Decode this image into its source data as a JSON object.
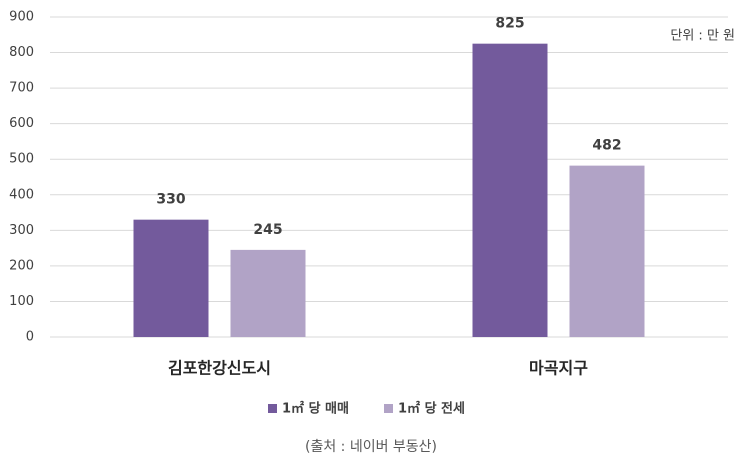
{
  "chart_data": {
    "type": "bar",
    "categories": [
      "김포한강신도시",
      "마곡지구"
    ],
    "series": [
      {
        "name": "1㎡ 당 매매",
        "color": "#735a9c",
        "values": [
          330,
          825
        ]
      },
      {
        "name": "1㎡ 당 전세",
        "color": "#b1a3c6",
        "values": [
          245,
          482
        ]
      }
    ],
    "ylim": [
      0,
      900
    ],
    "yticks": [
      0,
      100,
      200,
      300,
      400,
      500,
      600,
      700,
      800,
      900
    ],
    "grid": true,
    "annotation": "단위 : 만 원",
    "source": "(출처 : 네이버 부동산)",
    "legend": "bottom"
  }
}
